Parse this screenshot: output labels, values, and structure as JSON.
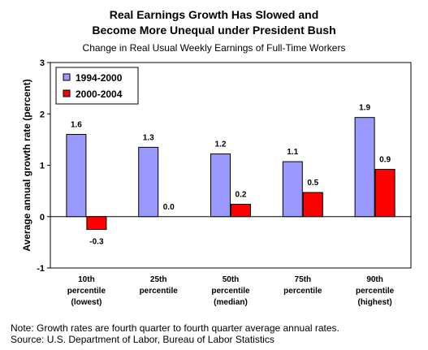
{
  "chart_data": {
    "type": "bar",
    "title_lines": [
      "Real Earnings Growth Has Slowed and",
      "Become More Unequal under President Bush"
    ],
    "subtitle": "Change in Real Usual Weekly Earnings of Full-Time Workers",
    "ylabel": "Average annual growth rate (percent)",
    "ylim": [
      -1,
      3
    ],
    "yticks": [
      -1,
      0,
      1,
      2,
      3
    ],
    "categories": [
      [
        "10th",
        "percentile",
        "(lowest)"
      ],
      [
        "25th",
        "percentile"
      ],
      [
        "50th",
        "percentile",
        "(median)"
      ],
      [
        "75th",
        "percentile"
      ],
      [
        "90th",
        "percentile",
        "(highest)"
      ]
    ],
    "series": [
      {
        "name": "1994-2000",
        "color": "#9999ff",
        "values": [
          1.6,
          1.35,
          1.22,
          1.07,
          1.93
        ],
        "labels": [
          "1.6",
          "1.3",
          "1.2",
          "1.1",
          "1.9"
        ]
      },
      {
        "name": "2000-2004",
        "color": "#ff0000",
        "values": [
          -0.25,
          0.0,
          0.24,
          0.47,
          0.92
        ],
        "labels": [
          "-0.3",
          "0.0",
          "0.2",
          "0.5",
          "0.9"
        ]
      }
    ],
    "legend_position": "top-left",
    "grid": false
  },
  "notes": [
    "Note: Growth rates are fourth quarter to fourth quarter average annual rates.",
    "Source: U.S. Department of Labor, Bureau of Labor Statistics"
  ]
}
